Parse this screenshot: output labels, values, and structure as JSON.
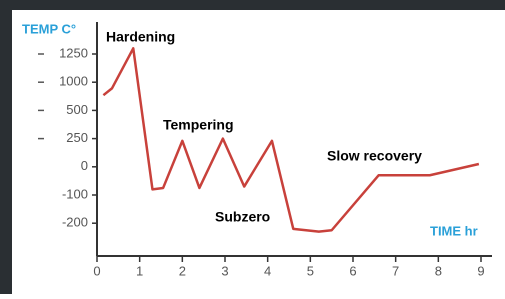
{
  "chart_data": {
    "type": "line",
    "y_label": "TEMP C°",
    "x_label": "TIME hr",
    "annotations": [
      "Hardening",
      "Tempering",
      "Subzero",
      "Slow recovery"
    ],
    "x": [
      0.15,
      0.35,
      0.85,
      1.3,
      1.55,
      2.0,
      2.4,
      2.95,
      3.45,
      4.1,
      4.6,
      5.2,
      5.5,
      6.6,
      7.8,
      8.95
    ],
    "series": [
      {
        "color": "#c8413b",
        "values": [
          770,
          890,
          1300,
          -80,
          -75,
          230,
          -75,
          250,
          -70,
          230,
          -220,
          -230,
          -225,
          -30,
          -30,
          25
        ]
      }
    ],
    "xlim": [
      0,
      9
    ],
    "xticks": [
      0,
      1,
      2,
      3,
      4,
      5,
      6,
      7,
      8,
      9
    ],
    "ylim": [
      -200,
      1250
    ],
    "yticks": [
      1250,
      1000,
      500,
      250,
      0,
      -100,
      -200
    ]
  }
}
